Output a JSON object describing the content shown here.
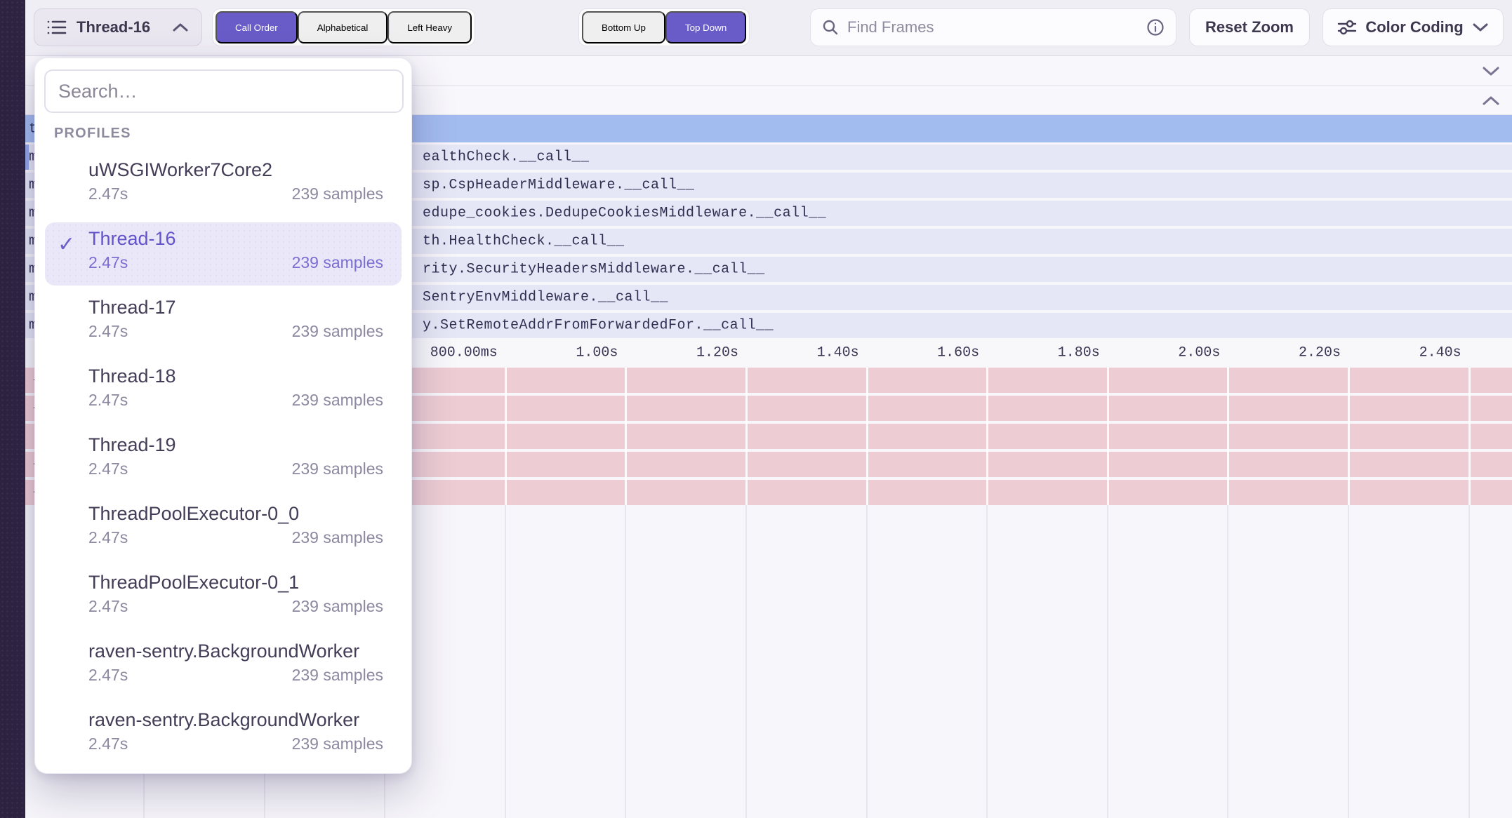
{
  "toolbar": {
    "thread_selector_label": "Thread-16",
    "sort_tabs": [
      {
        "label": "Call Order",
        "active": true
      },
      {
        "label": "Alphabetical",
        "active": false
      },
      {
        "label": "Left Heavy",
        "active": false
      }
    ],
    "direction_tabs": [
      {
        "label": "Bottom Up",
        "active": false
      },
      {
        "label": "Top Down",
        "active": true
      }
    ],
    "find_frames_placeholder": "Find Frames",
    "reset_zoom_label": "Reset Zoom",
    "color_coding_label": "Color Coding"
  },
  "profile_dropdown": {
    "search_placeholder": "Search…",
    "section_label": "PROFILES",
    "items": [
      {
        "name": "uWSGIWorker7Core2",
        "duration": "2.47s",
        "samples": "239 samples",
        "selected": false
      },
      {
        "name": "Thread-16",
        "duration": "2.47s",
        "samples": "239 samples",
        "selected": true
      },
      {
        "name": "Thread-17",
        "duration": "2.47s",
        "samples": "239 samples",
        "selected": false
      },
      {
        "name": "Thread-18",
        "duration": "2.47s",
        "samples": "239 samples",
        "selected": false
      },
      {
        "name": "Thread-19",
        "duration": "2.47s",
        "samples": "239 samples",
        "selected": false
      },
      {
        "name": "ThreadPoolExecutor-0_0",
        "duration": "2.47s",
        "samples": "239 samples",
        "selected": false
      },
      {
        "name": "ThreadPoolExecutor-0_1",
        "duration": "2.47s",
        "samples": "239 samples",
        "selected": false
      },
      {
        "name": "raven-sentry.BackgroundWorker",
        "duration": "2.47s",
        "samples": "239 samples",
        "selected": false
      },
      {
        "name": "raven-sentry.BackgroundWorker",
        "duration": "2.47s",
        "samples": "239 samples",
        "selected": false
      }
    ]
  },
  "flamegraph": {
    "rows": [
      {
        "type": "root",
        "left_clip": "t",
        "text": ""
      },
      {
        "left_clip": "m",
        "text": "ealthCheck.__call__",
        "left_accent": true
      },
      {
        "left_clip": "m",
        "text": "sp.CspHeaderMiddleware.__call__"
      },
      {
        "left_clip": "m",
        "text": "edupe_cookies.DedupeCookiesMiddleware.__call__"
      },
      {
        "left_clip": "m",
        "text": "th.HealthCheck.__call__"
      },
      {
        "left_clip": "m",
        "text": "rity.SecurityHeadersMiddleware.__call__"
      },
      {
        "left_clip": "m",
        "text": "SentryEnvMiddleware.__call__"
      },
      {
        "left_clip": "m",
        "text": "y.SetRemoteAddrFromForwardedFor.__call__"
      }
    ],
    "axis_ticks": [
      "800.00ms",
      "1.00s",
      "1.20s",
      "1.40s",
      "1.60s",
      "1.80s",
      "2.00s",
      "2.20s",
      "2.40s"
    ],
    "pink_rows": [
      {
        "left_clip": "-"
      },
      {
        "left_clip": "-"
      },
      {
        "left_clip": "|"
      },
      {
        "left_clip": "-"
      },
      {
        "left_clip": "-"
      }
    ]
  },
  "icons": {
    "check": "✓",
    "list_icon": "list-icon",
    "search_icon": "search-icon",
    "info_icon": "info-icon",
    "sliders_icon": "sliders-icon",
    "chevron_up": "chevron-up-icon",
    "chevron_down": "chevron-down-icon"
  },
  "colors": {
    "accent_purple": "#6a5cc8",
    "root_frame_blue": "#a3bcf0",
    "frame_lavender": "#e5e7f6",
    "frame_pink": "#edccd3",
    "sidebar_dark": "#2e2341",
    "selected_item_bg": "#eae7f8"
  }
}
